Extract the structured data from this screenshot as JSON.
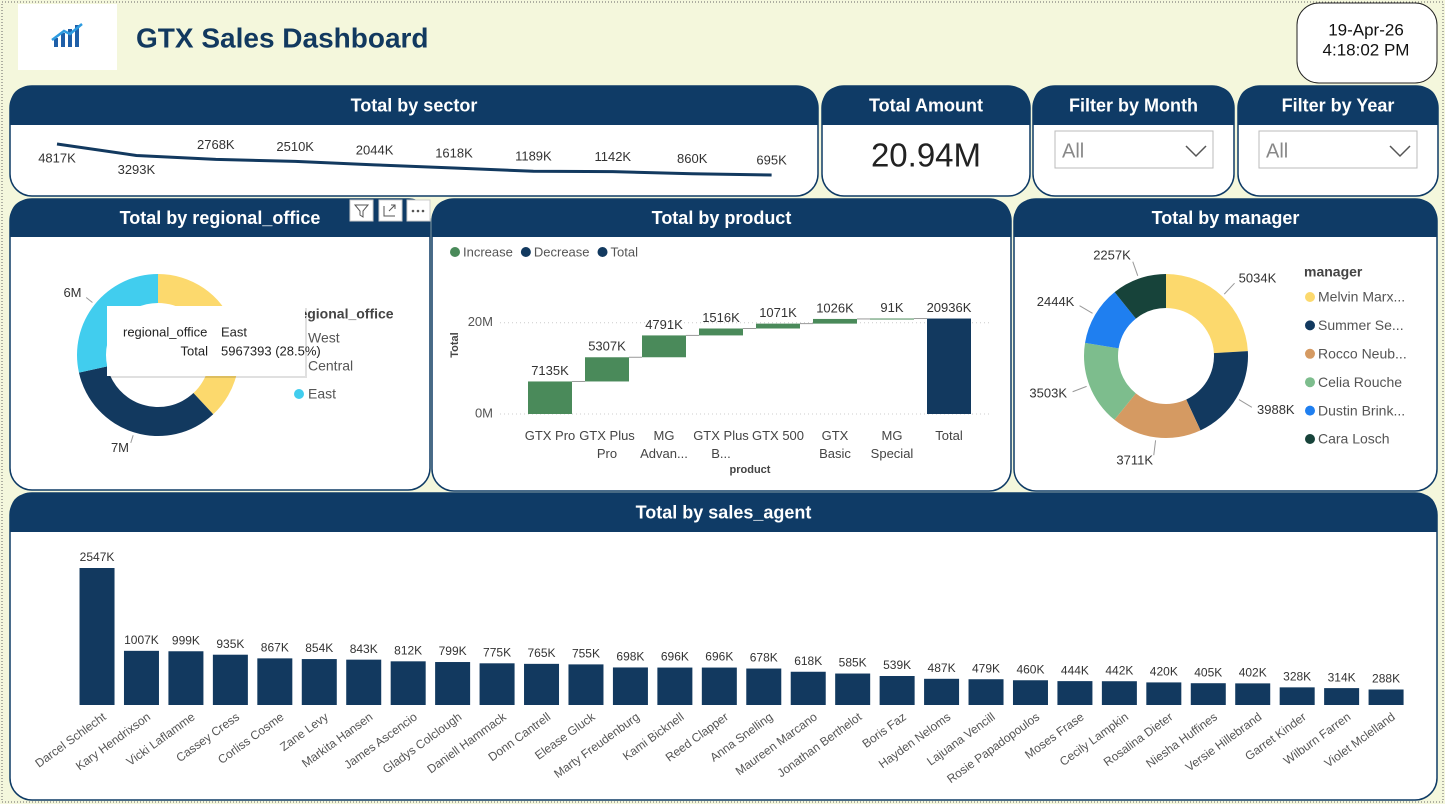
{
  "header": {
    "title": "GTX Sales Dashboard",
    "date": "19-Apr-26",
    "time": "4:18:02 PM"
  },
  "kpi": {
    "title": "Total Amount",
    "value": "20.94M"
  },
  "filters": [
    {
      "title": "Filter by Month",
      "value": "All"
    },
    {
      "title": "Filter by Year",
      "value": "All"
    }
  ],
  "chart_data": [
    {
      "type": "line",
      "title": "Total by sector",
      "color": "#12395f",
      "values": [
        4817,
        3293,
        2768,
        2510,
        2044,
        1618,
        1189,
        1142,
        860,
        695
      ],
      "value_labels": [
        "4817K",
        "3293K",
        "2768K",
        "2510K",
        "2044K",
        "1618K",
        "1189K",
        "1142K",
        "860K",
        "695K"
      ]
    },
    {
      "type": "donut",
      "title": "Total by regional_office",
      "legend_title": "regional_office",
      "categories": [
        "West",
        "Central",
        "East"
      ],
      "values": [
        7969000,
        7000000,
        5967393
      ],
      "value_labels": [
        null,
        "7M",
        "6M"
      ],
      "colors": [
        "#fcd96d",
        "#12395f",
        "#41cdee"
      ],
      "tooltip": [
        [
          "regional_office",
          "East"
        ],
        [
          "Total",
          "5967393 (28.5%)"
        ]
      ]
    },
    {
      "type": "waterfall",
      "title": "Total by product",
      "x_label": "product",
      "y_label": "Total",
      "categories": [
        "GTX Pro",
        "GTX Plus Pro",
        "MG Advan...",
        "GTX Plus B...",
        "GTX 500",
        "GTX Basic",
        "MG Special",
        "Total"
      ],
      "values": [
        7.135,
        5.307,
        4.791,
        1.516,
        1.071,
        1.026,
        0.091,
        20.936
      ],
      "value_labels": [
        "7135K",
        "5307K",
        "4791K",
        "1516K",
        "1071K",
        "1026K",
        "91K",
        "20936K"
      ],
      "total_last": true,
      "legend": [
        {
          "name": "Increase",
          "color": "#4a8a5a"
        },
        {
          "name": "Decrease",
          "color": "#12395f"
        },
        {
          "name": "Total",
          "color": "#12395f"
        }
      ],
      "ylim": [
        0,
        25
      ],
      "yticks": [
        {
          "value": 0,
          "label": "0M"
        },
        {
          "value": 20,
          "label": "20M"
        }
      ],
      "grid": true
    },
    {
      "type": "donut",
      "title": "Total by manager",
      "legend_title": "manager",
      "categories": [
        "Melvin Marx...",
        "Summer Se...",
        "Rocco Neub...",
        "Celia Rouche",
        "Dustin Brink...",
        "Cara Losch"
      ],
      "values": [
        5034,
        3988,
        3711,
        3503,
        2444,
        2257
      ],
      "value_labels": [
        "5034K",
        "3988K",
        "3711K",
        "3503K",
        "2444K",
        "2257K"
      ],
      "colors": [
        "#fcd96d",
        "#12395f",
        "#d59a62",
        "#7dbd8d",
        "#1f7ff0",
        "#17433a"
      ]
    },
    {
      "type": "bar",
      "title": "Total by sales_agent",
      "color": "#12395f",
      "categories": [
        "Darcel Schlecht",
        "Kary Hendrixson",
        "Vicki Laflamme",
        "Cassey Cress",
        "Corliss Cosme",
        "Zane Levy",
        "Markita Hansen",
        "James Ascencio",
        "Gladys Colclough",
        "Daniell Hammack",
        "Donn Cantrell",
        "Elease Gluck",
        "Marty Freudenburg",
        "Kami Bicknell",
        "Reed Clapper",
        "Anna Snelling",
        "Maureen Marcano",
        "Jonathan Berthelot",
        "Boris Faz",
        "Hayden Neloms",
        "Lajuana Vencill",
        "Rosie Papadopoulos",
        "Moses Frase",
        "Cecily Lampkin",
        "Rosalina Dieter",
        "Niesha Huffines",
        "Versie Hillebrand",
        "Garret Kinder",
        "Wilburn Farren",
        "Violet Mclelland"
      ],
      "values": [
        2547,
        1007,
        999,
        935,
        867,
        854,
        843,
        812,
        799,
        775,
        765,
        755,
        698,
        696,
        696,
        678,
        618,
        585,
        539,
        487,
        479,
        460,
        444,
        442,
        420,
        405,
        402,
        328,
        314,
        288
      ],
      "value_labels": [
        "2547K",
        "1007K",
        "999K",
        "935K",
        "867K",
        "854K",
        "843K",
        "812K",
        "799K",
        "775K",
        "765K",
        "755K",
        "698K",
        "696K",
        "696K",
        "678K",
        "618K",
        "585K",
        "539K",
        "487K",
        "479K",
        "460K",
        "444K",
        "442K",
        "420K",
        "405K",
        "402K",
        "328K",
        "314K",
        "288K"
      ]
    }
  ]
}
